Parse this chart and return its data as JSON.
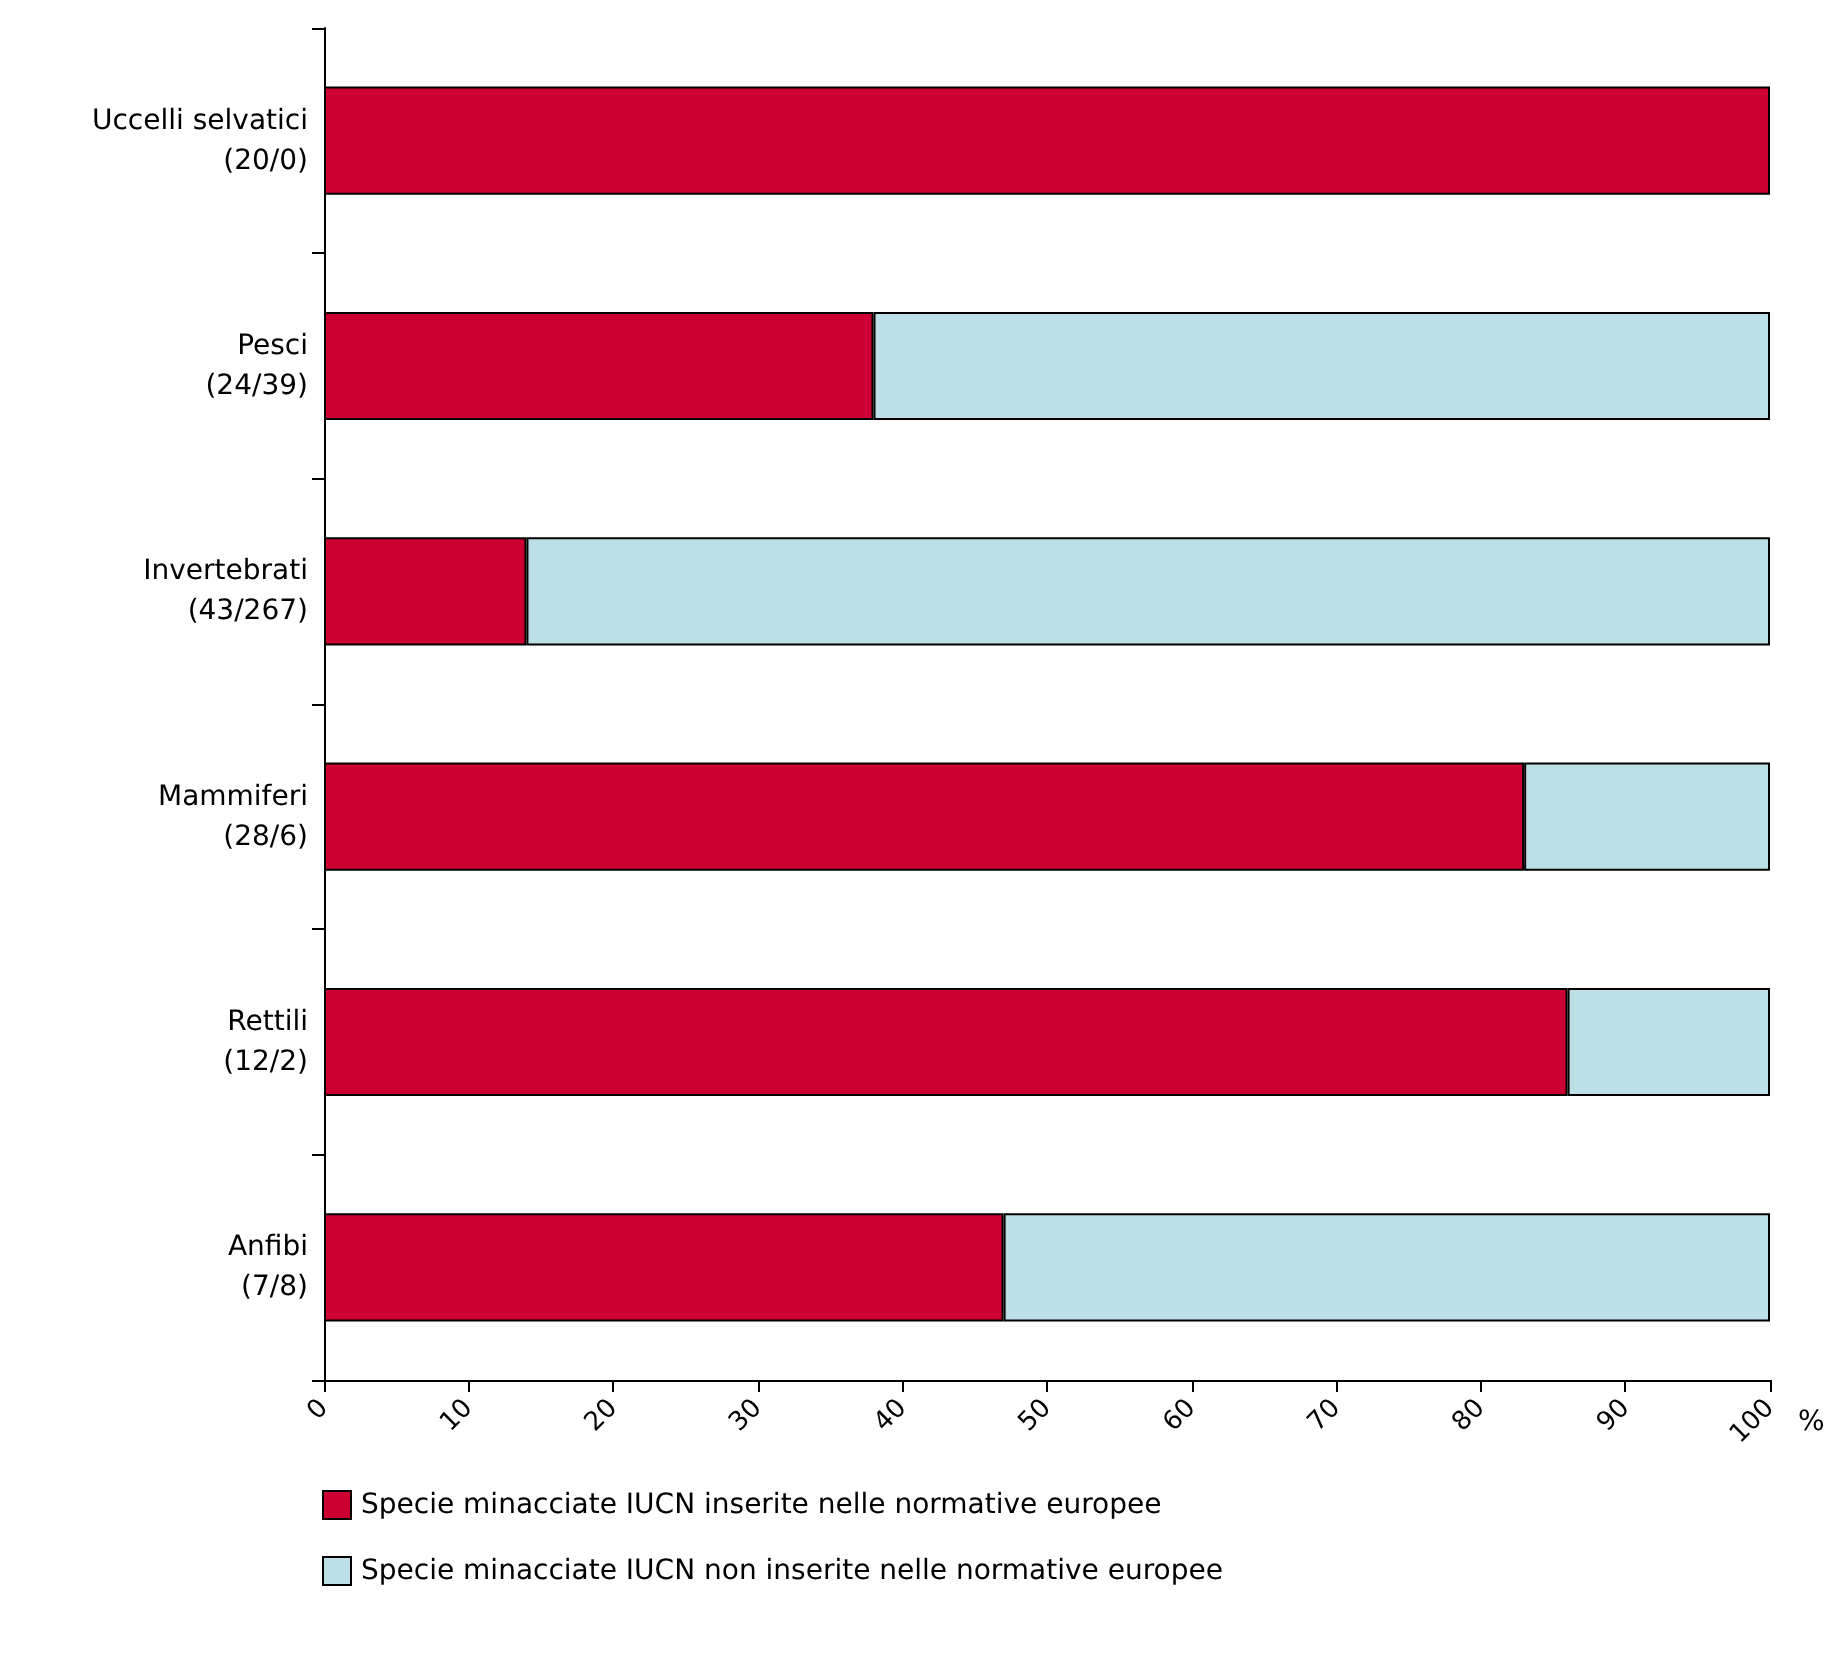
{
  "chart_data": {
    "type": "bar",
    "orientation": "horizontal",
    "stacked": true,
    "categories": [
      "Uccelli selvatici\n(20/0)",
      "Pesci\n(24/39)",
      "Invertebrati\n(43/267)",
      "Mammiferi\n(28/6)",
      "Rettili\n(12/2)",
      "Anfibi\n(7/8)"
    ],
    "series": [
      {
        "name": "Specie minacciate IUCN inserite nelle normative europee",
        "color": "#cc0033",
        "values": [
          100,
          38,
          14,
          83,
          86,
          47
        ]
      },
      {
        "name": "Specie minacciate IUCN non inserite nelle normative europee",
        "color": "#bde0e6",
        "values": [
          0,
          62,
          86,
          17,
          14,
          53
        ]
      }
    ],
    "xlabel": "%",
    "xlim": [
      0,
      100
    ],
    "xticks": [
      0,
      10,
      20,
      30,
      40,
      50,
      60,
      70,
      80,
      90,
      100
    ],
    "grid": false,
    "legend": "bottom"
  }
}
